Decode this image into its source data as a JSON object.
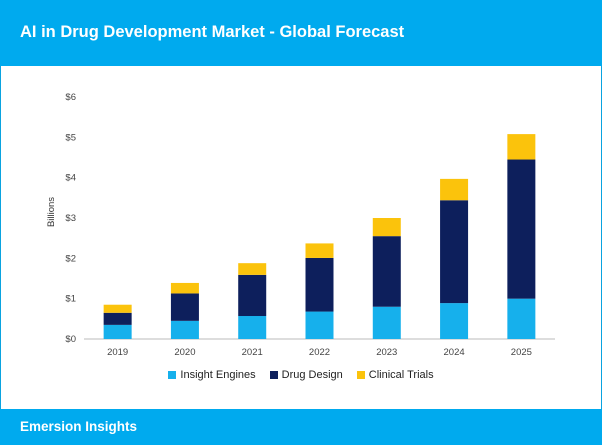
{
  "header": {
    "title": "AI in Drug Development Market - Global Forecast"
  },
  "footer": {
    "brand": "Emersion Insights"
  },
  "colors": {
    "header_bg": "#00aaee",
    "insight_engines": "#16b0ec",
    "drug_design": "#0d1f5c",
    "clinical_trials": "#fbc30c"
  },
  "chart_data": {
    "type": "bar",
    "stacked": true,
    "title": "AI in Drug Development Market - Global Forecast",
    "xlabel": "",
    "ylabel": "Billions",
    "ylim": [
      0,
      6
    ],
    "yticks": [
      "$0",
      "$1",
      "$2",
      "$3",
      "$4",
      "$5",
      "$6"
    ],
    "categories": [
      "2019",
      "2020",
      "2021",
      "2022",
      "2023",
      "2024",
      "2025"
    ],
    "series": [
      {
        "name": "Insight Engines",
        "values": [
          0.35,
          0.45,
          0.57,
          0.68,
          0.8,
          0.89,
          1.0
        ]
      },
      {
        "name": "Drug Design",
        "values": [
          0.3,
          0.68,
          1.02,
          1.33,
          1.75,
          2.55,
          3.45
        ]
      },
      {
        "name": "Clinical Trials",
        "values": [
          0.2,
          0.26,
          0.29,
          0.36,
          0.45,
          0.53,
          0.63
        ]
      }
    ],
    "legend_position": "bottom",
    "grid": false
  }
}
